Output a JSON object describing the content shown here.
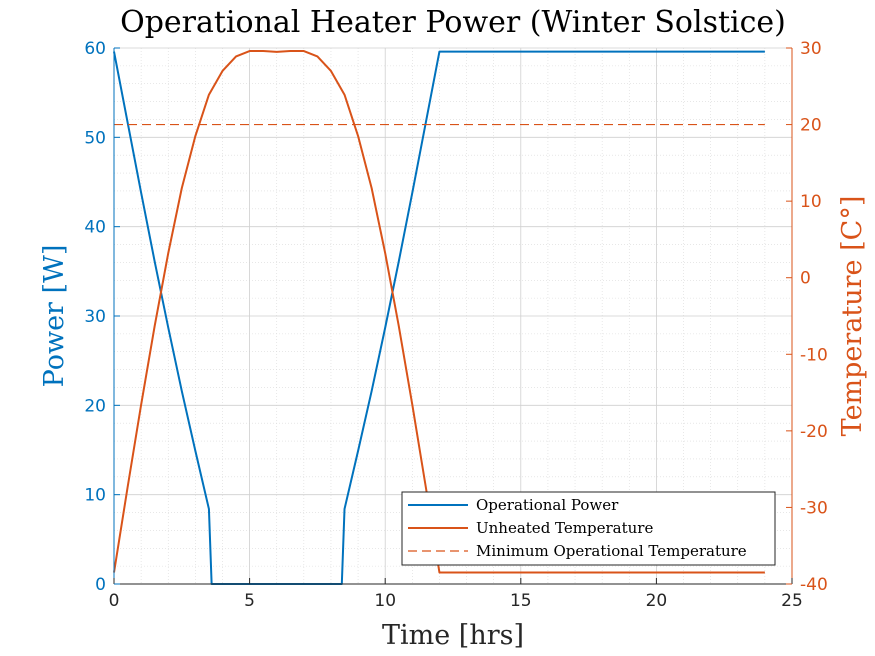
{
  "chart_data": {
    "type": "line",
    "title": "Operational Heater Power (Winter Solstice)",
    "xlabel": "Time [hrs]",
    "ylabel_left": "Power [W]",
    "ylabel_right": "Temperature [C°]",
    "xlim": [
      0,
      25
    ],
    "ylim_left": [
      0,
      60
    ],
    "ylim_right": [
      -40,
      30
    ],
    "xticks": [
      0,
      5,
      10,
      15,
      20,
      25
    ],
    "yticks_left": [
      0,
      10,
      20,
      30,
      40,
      50,
      60
    ],
    "yticks_right": [
      -40,
      -30,
      -20,
      -10,
      0,
      10,
      20,
      30
    ],
    "grid": true,
    "minor_grid": true,
    "legend_position": "bottom-right",
    "colors": {
      "power": "#0072BD",
      "temperature": "#D95319",
      "min_temp": "#D95319",
      "axis_left": "#0072BD",
      "axis_right": "#D95319"
    },
    "series": [
      {
        "name": "Operational Power",
        "axis": "left",
        "style": "solid",
        "x": [
          0,
          0.5,
          1,
          1.5,
          2,
          2.5,
          3,
          3.5,
          3.6,
          8.4,
          8.5,
          9,
          9.5,
          10,
          10.5,
          11,
          11.5,
          12,
          24
        ],
        "y": [
          59.6,
          51.7,
          43.8,
          36.1,
          28.7,
          21.6,
          14.9,
          8.4,
          0,
          0,
          8.4,
          14.9,
          21.6,
          28.7,
          36.1,
          43.8,
          51.7,
          59.6,
          59.6
        ]
      },
      {
        "name": "Unheated Temperature",
        "axis": "right",
        "style": "solid",
        "x": [
          0,
          0.5,
          1,
          1.5,
          2,
          2.5,
          3,
          3.5,
          4,
          4.5,
          5,
          5.5,
          6,
          6.5,
          7,
          7.5,
          8,
          8.5,
          9,
          9.5,
          10,
          10.5,
          11,
          11.5,
          12,
          24
        ],
        "y": [
          -38.5,
          -27.4,
          -16.6,
          -6.3,
          3.2,
          11.7,
          18.5,
          23.9,
          27.0,
          28.9,
          29.6,
          29.6,
          29.5,
          29.6,
          29.6,
          28.9,
          27.0,
          23.9,
          18.5,
          11.7,
          3.2,
          -6.3,
          -16.6,
          -27.4,
          -38.5,
          -38.5
        ]
      },
      {
        "name": "Minimum Operational Temperature",
        "axis": "right",
        "style": "dashed",
        "x": [
          0,
          24
        ],
        "y": [
          20,
          20
        ]
      }
    ]
  }
}
